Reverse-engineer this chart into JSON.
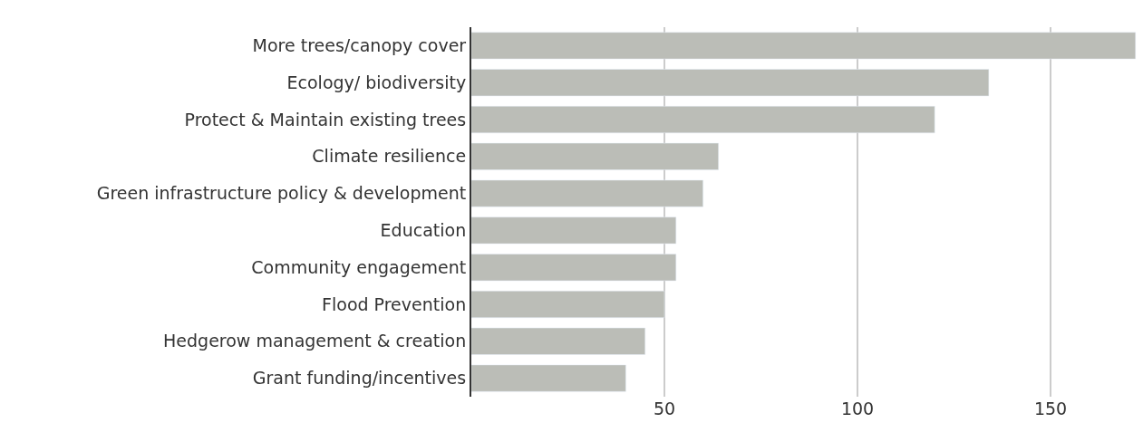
{
  "chart_data": {
    "type": "bar",
    "orientation": "horizontal",
    "categories": [
      "More trees/canopy cover",
      "Ecology/ biodiversity",
      "Protect & Maintain existing trees",
      "Climate resilience",
      "Green infrastructure policy & development",
      "Education",
      "Community engagement",
      "Flood Prevention",
      "Hedgerow management & creation",
      "Grant funding/incentives"
    ],
    "values": [
      172,
      134,
      120,
      64,
      60,
      53,
      53,
      50,
      45,
      40
    ],
    "color": "#bbbdb7",
    "xlim": [
      0,
      173
    ],
    "xticks": [
      50,
      100,
      150
    ],
    "grid": "x"
  }
}
